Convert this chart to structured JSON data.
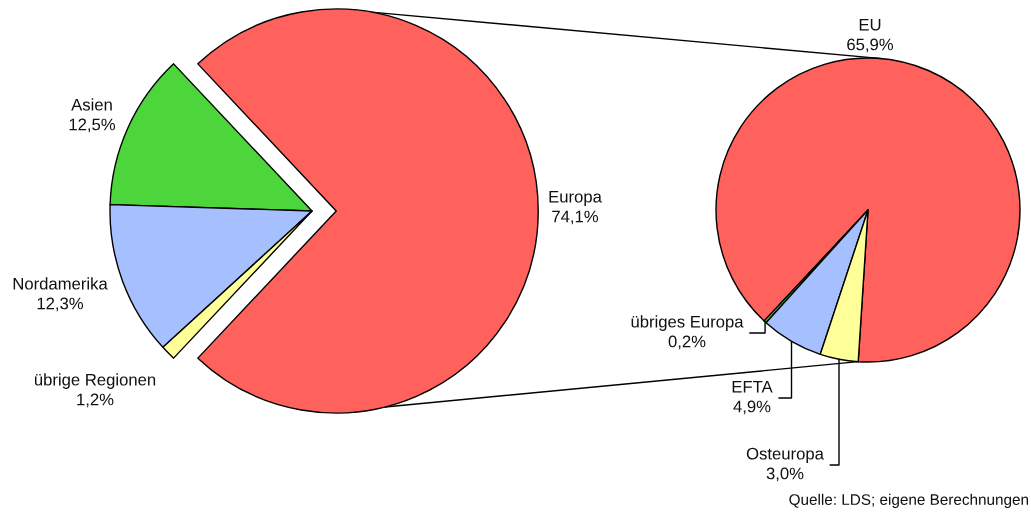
{
  "chart_data": [
    {
      "type": "pie",
      "categories": [
        "Europa",
        "Asien",
        "Nordamerika",
        "übrige Regionen"
      ],
      "values": [
        74.1,
        12.5,
        12.3,
        1.2
      ],
      "colors": [
        "#ff615c",
        "#4cd63c",
        "#a6bfff",
        "#ffff99"
      ],
      "value_labels": [
        "74,1%",
        "12,5%",
        "12,3%",
        "1,2%"
      ]
    },
    {
      "type": "pie",
      "categories": [
        "EU",
        "übriges Europa",
        "EFTA",
        "Osteuropa"
      ],
      "values": [
        65.9,
        0.2,
        4.9,
        3.0
      ],
      "colors": [
        "#ff615c",
        "#4cd63c",
        "#a6bfff",
        "#ffff99"
      ],
      "value_labels": [
        "65,9%",
        "0,2%",
        "4,9%",
        "3,0%"
      ],
      "annotations": [
        "Quelle: LDS; eigene Berechnungen"
      ]
    }
  ]
}
